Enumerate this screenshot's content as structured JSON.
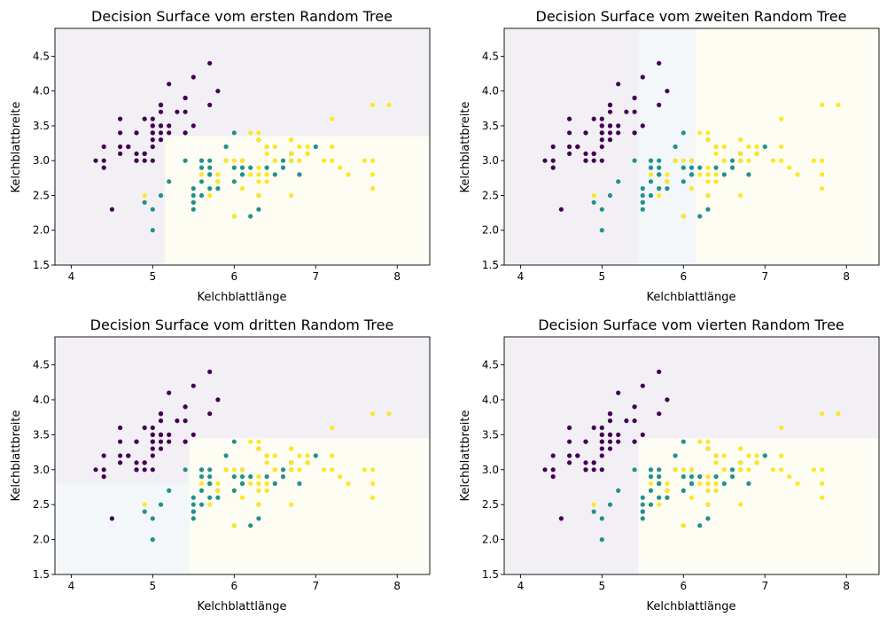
{
  "colors": {
    "class0": "#440154",
    "class1": "#21918c",
    "class2": "#fde725",
    "region0": "#f3f0f5",
    "region1": "#f3f7f9",
    "region2": "#fdfdf3"
  },
  "iris": {
    "x": [
      5.1,
      4.9,
      4.7,
      4.6,
      5.0,
      5.4,
      4.6,
      5.0,
      4.4,
      4.9,
      5.4,
      4.8,
      4.8,
      4.3,
      5.8,
      5.7,
      5.4,
      5.1,
      5.7,
      5.1,
      5.4,
      5.1,
      4.6,
      5.1,
      4.8,
      5.0,
      5.0,
      5.2,
      5.2,
      4.7,
      4.8,
      5.4,
      5.2,
      5.5,
      4.9,
      5.0,
      5.5,
      4.9,
      4.4,
      5.1,
      5.0,
      4.5,
      4.4,
      5.0,
      5.1,
      4.8,
      5.1,
      4.6,
      5.3,
      5.0,
      7.0,
      6.4,
      6.9,
      5.5,
      6.5,
      5.7,
      6.3,
      4.9,
      6.6,
      5.2,
      5.0,
      5.9,
      6.0,
      6.1,
      5.6,
      6.7,
      5.6,
      5.8,
      6.2,
      5.6,
      5.9,
      6.1,
      6.3,
      6.1,
      6.4,
      6.6,
      6.8,
      6.7,
      6.0,
      5.7,
      5.5,
      5.5,
      5.8,
      6.0,
      5.4,
      6.0,
      6.7,
      6.3,
      5.6,
      5.5,
      5.5,
      6.1,
      5.8,
      5.0,
      5.6,
      5.7,
      5.7,
      6.2,
      5.1,
      5.7,
      6.3,
      5.8,
      7.1,
      6.3,
      6.5,
      7.6,
      4.9,
      7.3,
      6.7,
      7.2,
      6.5,
      6.4,
      6.8,
      5.7,
      5.8,
      6.4,
      6.5,
      7.7,
      7.7,
      6.0,
      6.9,
      5.6,
      7.7,
      6.3,
      6.7,
      7.2,
      6.2,
      6.1,
      6.4,
      7.2,
      7.4,
      7.9,
      6.4,
      6.3,
      6.1,
      7.7,
      6.3,
      6.4,
      6.0,
      6.9,
      6.7,
      6.9,
      5.8,
      6.8,
      6.7,
      6.7,
      6.3,
      6.5,
      6.2,
      5.9
    ],
    "y": [
      3.5,
      3.0,
      3.2,
      3.1,
      3.6,
      3.9,
      3.4,
      3.4,
      2.9,
      3.1,
      3.7,
      3.4,
      3.0,
      3.0,
      4.0,
      4.4,
      3.9,
      3.5,
      3.8,
      3.8,
      3.4,
      3.7,
      3.6,
      3.3,
      3.4,
      3.0,
      3.4,
      3.5,
      3.4,
      3.2,
      3.1,
      3.4,
      4.1,
      4.2,
      3.1,
      3.2,
      3.5,
      3.6,
      3.0,
      3.4,
      3.5,
      2.3,
      3.2,
      3.5,
      3.8,
      3.0,
      3.8,
      3.2,
      3.7,
      3.3,
      3.2,
      3.2,
      3.1,
      2.3,
      2.8,
      2.8,
      3.3,
      2.4,
      2.9,
      2.7,
      2.0,
      3.0,
      2.2,
      2.9,
      2.9,
      3.1,
      3.0,
      2.7,
      2.2,
      2.5,
      3.2,
      2.8,
      2.5,
      2.8,
      2.9,
      3.0,
      2.8,
      3.0,
      2.9,
      2.6,
      2.4,
      2.4,
      2.7,
      2.7,
      3.0,
      3.4,
      3.1,
      2.3,
      3.0,
      2.5,
      2.6,
      3.0,
      2.6,
      2.3,
      2.7,
      3.0,
      2.9,
      2.9,
      2.5,
      2.8,
      3.3,
      2.7,
      3.0,
      2.9,
      3.0,
      3.0,
      2.5,
      2.9,
      2.5,
      3.6,
      3.2,
      2.7,
      3.0,
      2.5,
      2.8,
      3.2,
      3.0,
      3.8,
      2.6,
      2.2,
      3.2,
      2.8,
      2.8,
      2.7,
      3.3,
      3.2,
      2.8,
      3.0,
      2.8,
      3.0,
      2.8,
      3.8,
      2.8,
      2.8,
      2.6,
      3.0,
      3.4,
      3.1,
      3.0,
      3.1,
      3.1,
      3.1,
      2.7,
      3.2,
      3.3,
      3.0,
      2.5,
      3.0,
      3.4,
      3.0
    ],
    "label": [
      0,
      0,
      0,
      0,
      0,
      0,
      0,
      0,
      0,
      0,
      0,
      0,
      0,
      0,
      0,
      0,
      0,
      0,
      0,
      0,
      0,
      0,
      0,
      0,
      0,
      0,
      0,
      0,
      0,
      0,
      0,
      0,
      0,
      0,
      0,
      0,
      0,
      0,
      0,
      0,
      0,
      0,
      0,
      0,
      0,
      0,
      0,
      0,
      0,
      0,
      1,
      1,
      1,
      1,
      1,
      1,
      1,
      1,
      1,
      1,
      1,
      1,
      1,
      1,
      1,
      1,
      1,
      1,
      1,
      1,
      1,
      1,
      1,
      1,
      1,
      1,
      1,
      1,
      1,
      1,
      1,
      1,
      1,
      1,
      1,
      1,
      1,
      1,
      1,
      1,
      1,
      1,
      1,
      1,
      1,
      1,
      1,
      1,
      1,
      1,
      2,
      2,
      2,
      2,
      2,
      2,
      2,
      2,
      2,
      2,
      2,
      2,
      2,
      2,
      2,
      2,
      2,
      2,
      2,
      2,
      2,
      2,
      2,
      2,
      2,
      2,
      2,
      2,
      2,
      2,
      2,
      2,
      2,
      2,
      2,
      2,
      2,
      2,
      2,
      2,
      2,
      2,
      2,
      2,
      2,
      2,
      2,
      2,
      2,
      2
    ]
  },
  "chart_data": [
    {
      "type": "scatter",
      "title": "Decision Surface vom ersten Random Tree",
      "xlabel": "Kelchblattlänge",
      "ylabel": "Kelchblattbreite",
      "xlim": [
        3.8,
        8.4
      ],
      "ylim": [
        1.5,
        4.9
      ],
      "xticks": [
        4,
        5,
        6,
        7,
        8
      ],
      "yticks": [
        1.5,
        2.0,
        2.5,
        3.0,
        3.5,
        4.0,
        4.5
      ],
      "grid": false,
      "regions": [
        {
          "x": [
            3.8,
            8.4
          ],
          "y": [
            1.5,
            4.9
          ],
          "class": 0
        },
        {
          "x": [
            5.15,
            8.4
          ],
          "y": [
            1.5,
            3.35
          ],
          "class": 2
        }
      ]
    },
    {
      "type": "scatter",
      "title": "Decision Surface vom zweiten Random Tree",
      "xlabel": "Kelchblattlänge",
      "ylabel": "Kelchblattbreite",
      "xlim": [
        3.8,
        8.4
      ],
      "ylim": [
        1.5,
        4.9
      ],
      "xticks": [
        4,
        5,
        6,
        7,
        8
      ],
      "yticks": [
        1.5,
        2.0,
        2.5,
        3.0,
        3.5,
        4.0,
        4.5
      ],
      "grid": false,
      "regions": [
        {
          "x": [
            3.8,
            5.45
          ],
          "y": [
            1.5,
            4.9
          ],
          "class": 0
        },
        {
          "x": [
            5.45,
            6.15
          ],
          "y": [
            1.5,
            4.9
          ],
          "class": 1
        },
        {
          "x": [
            6.15,
            8.4
          ],
          "y": [
            1.5,
            4.9
          ],
          "class": 2
        }
      ]
    },
    {
      "type": "scatter",
      "title": "Decision Surface vom dritten Random Tree",
      "xlabel": "Kelchblattlänge",
      "ylabel": "Kelchblattbreite",
      "xlim": [
        3.8,
        8.4
      ],
      "ylim": [
        1.5,
        4.9
      ],
      "xticks": [
        4,
        5,
        6,
        7,
        8
      ],
      "yticks": [
        1.5,
        2.0,
        2.5,
        3.0,
        3.5,
        4.0,
        4.5
      ],
      "grid": false,
      "regions": [
        {
          "x": [
            3.8,
            8.4
          ],
          "y": [
            1.5,
            4.9
          ],
          "class": 0
        },
        {
          "x": [
            3.8,
            5.45
          ],
          "y": [
            1.5,
            2.8
          ],
          "class": 1
        },
        {
          "x": [
            5.45,
            8.4
          ],
          "y": [
            1.5,
            3.45
          ],
          "class": 2
        }
      ]
    },
    {
      "type": "scatter",
      "title": "Decision Surface vom vierten Random Tree",
      "xlabel": "Kelchblattlänge",
      "ylabel": "Kelchblattbreite",
      "xlim": [
        3.8,
        8.4
      ],
      "ylim": [
        1.5,
        4.9
      ],
      "xticks": [
        4,
        5,
        6,
        7,
        8
      ],
      "yticks": [
        1.5,
        2.0,
        2.5,
        3.0,
        3.5,
        4.0,
        4.5
      ],
      "grid": false,
      "regions": [
        {
          "x": [
            3.8,
            8.4
          ],
          "y": [
            1.5,
            4.9
          ],
          "class": 0
        },
        {
          "x": [
            5.45,
            8.4
          ],
          "y": [
            1.5,
            3.45
          ],
          "class": 2
        }
      ]
    }
  ]
}
